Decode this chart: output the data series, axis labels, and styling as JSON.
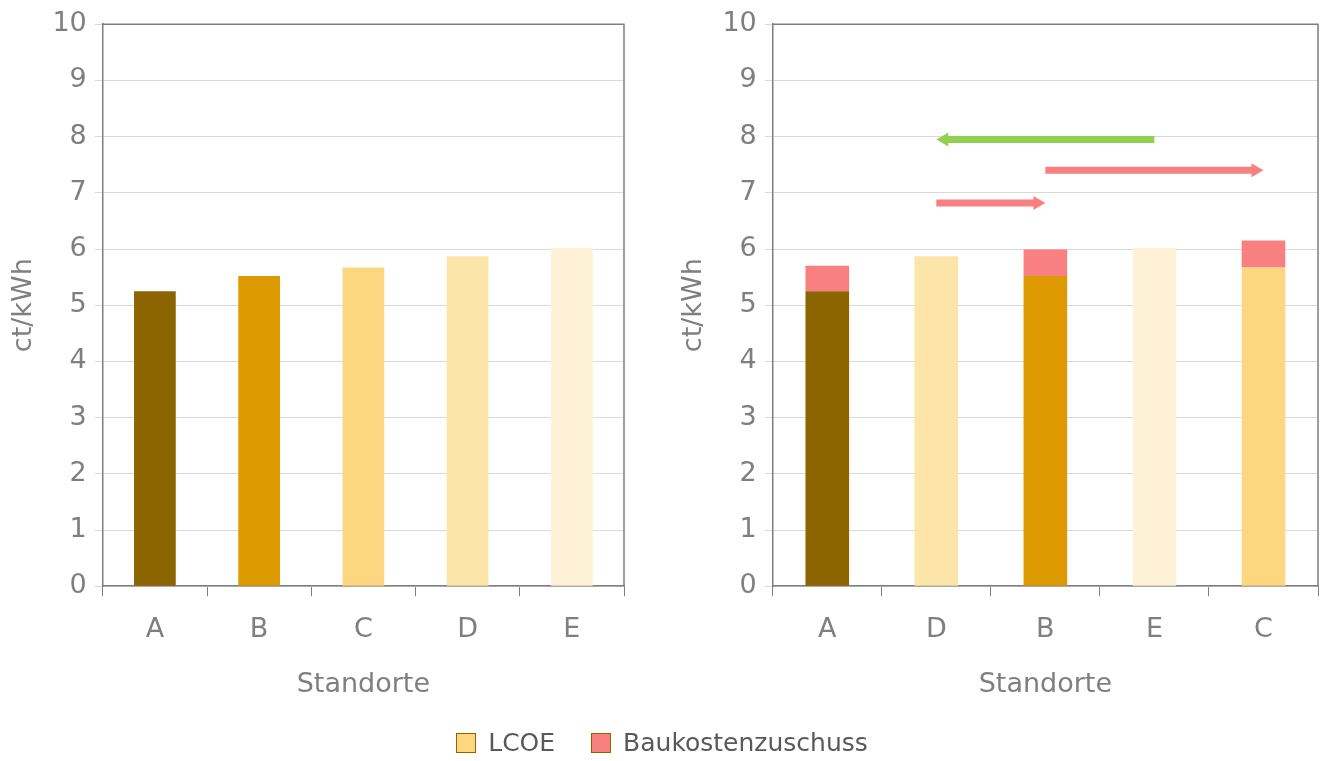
{
  "chart_data": [
    {
      "type": "bar",
      "xlabel": "Standorte",
      "ylabel": "ct/kWh",
      "categories": [
        "A",
        "B",
        "C",
        "D",
        "E"
      ],
      "series": [
        {
          "colors": [
            "#8c6400",
            "#dc9900",
            "#fdd680",
            "#fde5aa",
            "#fef1d6"
          ],
          "values": [
            5.25,
            5.52,
            5.67,
            5.87,
            6.02
          ]
        }
      ],
      "ylim": [
        0,
        10
      ],
      "yticks": [
        0,
        1,
        2,
        3,
        4,
        5,
        6,
        7,
        8,
        9,
        10
      ],
      "grid": "y",
      "legend": false
    },
    {
      "type": "bar",
      "xlabel": "Standorte",
      "ylabel": "ct/kWh",
      "categories": [
        "A",
        "D",
        "B",
        "E",
        "C"
      ],
      "stacked": true,
      "series": [
        {
          "name": "LCOE",
          "color": "#fdd680",
          "colors": [
            "#8c6400",
            "#fde5aa",
            "#dc9900",
            "#fef1d6",
            "#fdd680"
          ],
          "values": [
            5.25,
            5.87,
            5.52,
            6.02,
            5.67
          ]
        },
        {
          "name": "Baukostenzuschuss",
          "color": "#f88080",
          "values": [
            0.45,
            null,
            0.47,
            null,
            0.48
          ]
        }
      ],
      "ylim": [
        0,
        10
      ],
      "yticks": [
        0,
        1,
        2,
        3,
        4,
        5,
        6,
        7,
        8,
        9,
        10
      ],
      "grid": "y",
      "legend": "bottom"
    }
  ]
}
